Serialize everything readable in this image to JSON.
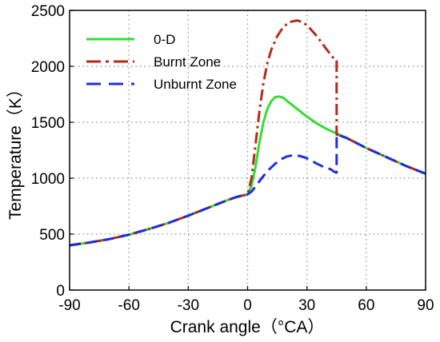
{
  "chart_data": {
    "type": "line",
    "xlabel": "Crank angle（°CA）",
    "ylabel": "Temperature（K）",
    "xlim": [
      -90,
      90
    ],
    "ylim": [
      0,
      2500
    ],
    "xticks": [
      -90,
      -60,
      -30,
      0,
      30,
      60,
      90
    ],
    "yticks": [
      0,
      500,
      1000,
      1500,
      2000,
      2500
    ],
    "grid": true,
    "legend_position": "top-left",
    "series": [
      {
        "name": "0-D",
        "color": "#33dd33",
        "style": "solid",
        "x": [
          -90,
          -80,
          -70,
          -60,
          -50,
          -40,
          -30,
          -20,
          -10,
          -5,
          0,
          2,
          4,
          6,
          8,
          10,
          12,
          14,
          16,
          18,
          20,
          25,
          30,
          35,
          40,
          45,
          50,
          60,
          70,
          80,
          90
        ],
        "y": [
          400,
          425,
          455,
          495,
          545,
          600,
          665,
          735,
          805,
          835,
          855,
          930,
          1100,
          1320,
          1500,
          1620,
          1690,
          1725,
          1730,
          1720,
          1690,
          1620,
          1550,
          1490,
          1440,
          1400,
          1360,
          1270,
          1190,
          1110,
          1040
        ]
      },
      {
        "name": "Burnt Zone",
        "color": "#b52a1a",
        "style": "dashdot",
        "x": [
          -90,
          -80,
          -70,
          -60,
          -50,
          -40,
          -30,
          -20,
          -10,
          -5,
          0,
          2,
          4,
          6,
          8,
          10,
          12,
          15,
          18,
          21,
          25,
          28,
          31,
          35,
          40,
          44,
          45,
          45,
          50,
          60,
          70,
          80,
          90
        ],
        "y": [
          400,
          425,
          455,
          495,
          545,
          600,
          665,
          735,
          805,
          835,
          855,
          1000,
          1300,
          1600,
          1850,
          2030,
          2150,
          2270,
          2350,
          2395,
          2410,
          2395,
          2350,
          2270,
          2150,
          2060,
          2050,
          1390,
          1360,
          1270,
          1190,
          1110,
          1040
        ]
      },
      {
        "name": "Unburnt Zone",
        "color": "#1f2ed8",
        "style": "dashed",
        "x": [
          -90,
          -80,
          -70,
          -60,
          -50,
          -40,
          -30,
          -20,
          -10,
          -5,
          0,
          2,
          5,
          8,
          11,
          14,
          17,
          20,
          23,
          26,
          29,
          32,
          35,
          38,
          42,
          44,
          45,
          45,
          50,
          60,
          70,
          80,
          90
        ],
        "y": [
          400,
          425,
          455,
          495,
          545,
          600,
          665,
          735,
          805,
          835,
          855,
          880,
          950,
          1020,
          1080,
          1130,
          1170,
          1195,
          1205,
          1200,
          1185,
          1160,
          1130,
          1105,
          1080,
          1055,
          1050,
          1390,
          1360,
          1270,
          1190,
          1110,
          1040
        ]
      }
    ]
  }
}
